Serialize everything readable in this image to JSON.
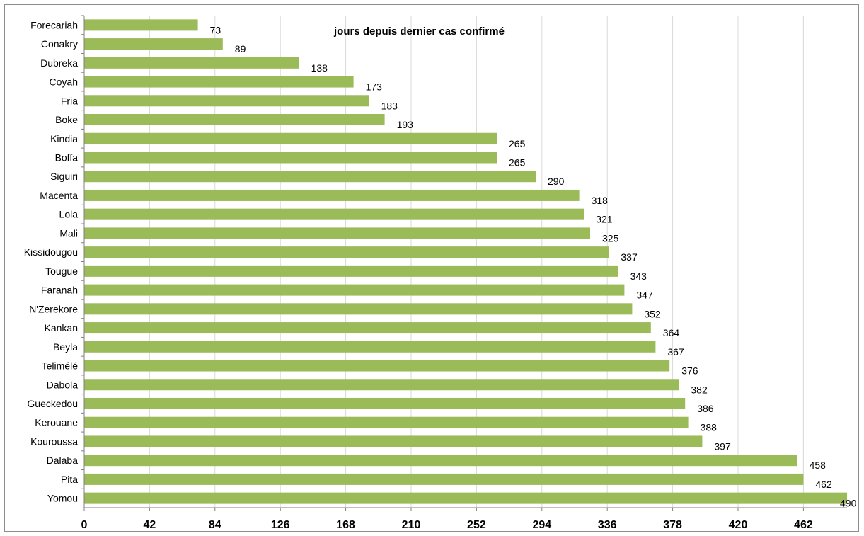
{
  "chart_data": {
    "type": "bar",
    "orientation": "horizontal",
    "title": "jours depuis dernier cas confirmé",
    "categories": [
      "Forecariah",
      "Conakry",
      "Dubreka",
      "Coyah",
      "Fria",
      "Boke",
      "Kindia",
      "Boffa",
      "Siguiri",
      "Macenta",
      "Lola",
      "Mali",
      "Kissidougou",
      "Tougue",
      "Faranah",
      "N'Zerekore",
      "Kankan",
      "Beyla",
      "Telimélé",
      "Dabola",
      "Gueckedou",
      "Kerouane",
      "Kouroussa",
      "Dalaba",
      "Pita",
      "Yomou"
    ],
    "values": [
      73,
      89,
      138,
      173,
      183,
      193,
      265,
      265,
      290,
      318,
      321,
      325,
      337,
      343,
      347,
      352,
      364,
      367,
      376,
      382,
      386,
      388,
      397,
      458,
      462,
      490
    ],
    "x_ticks": [
      0,
      42,
      84,
      126,
      168,
      210,
      252,
      294,
      336,
      378,
      420,
      462
    ],
    "xlim": [
      0,
      490
    ],
    "xlabel": "",
    "ylabel": "",
    "grid": "vertical",
    "legend": "none",
    "colors": {
      "bar": "#9BBB59",
      "grid": "#d9d9d9",
      "axis": "#7f7f7f"
    }
  }
}
